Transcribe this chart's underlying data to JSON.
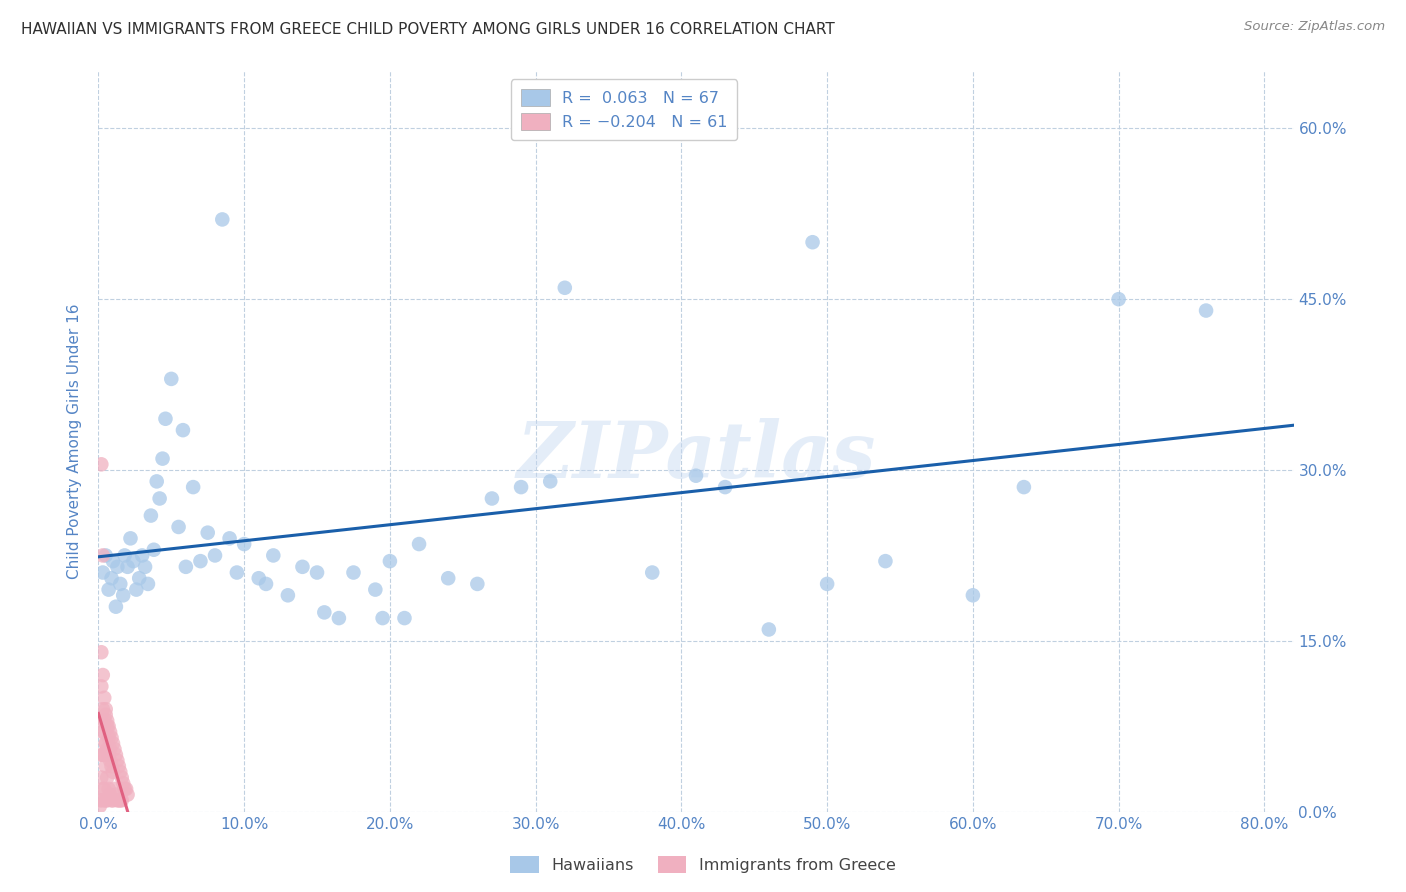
{
  "title": "HAWAIIAN VS IMMIGRANTS FROM GREECE CHILD POVERTY AMONG GIRLS UNDER 16 CORRELATION CHART",
  "source": "Source: ZipAtlas.com",
  "ylabel": "Child Poverty Among Girls Under 16",
  "watermark": "ZIPatlas",
  "hawaiian_color": "#a8c8e8",
  "hawaii_line_color": "#1a5faa",
  "greece_color": "#f0b0c0",
  "greece_line_color": "#e06080",
  "background_color": "#ffffff",
  "grid_color": "#c0d0e0",
  "xlim": [
    0.0,
    0.82
  ],
  "ylim": [
    0.0,
    0.65
  ],
  "title_color": "#303030",
  "source_color": "#888888",
  "axis_label_color": "#5585c5",
  "tick_label_color": "#5585c5",
  "ytick_label_color_right": "#5585c5",
  "legend_label_color": "#5585c5",
  "hawaiians_x": [
    0.003,
    0.005,
    0.007,
    0.009,
    0.01,
    0.012,
    0.013,
    0.015,
    0.017,
    0.018,
    0.02,
    0.022,
    0.024,
    0.026,
    0.028,
    0.03,
    0.032,
    0.034,
    0.036,
    0.038,
    0.04,
    0.042,
    0.044,
    0.046,
    0.05,
    0.055,
    0.058,
    0.06,
    0.065,
    0.07,
    0.075,
    0.08,
    0.09,
    0.095,
    0.1,
    0.11,
    0.115,
    0.12,
    0.13,
    0.14,
    0.15,
    0.165,
    0.175,
    0.19,
    0.2,
    0.21,
    0.22,
    0.24,
    0.26,
    0.29,
    0.31,
    0.38,
    0.41,
    0.46,
    0.5,
    0.54,
    0.6,
    0.635,
    0.7,
    0.76,
    0.32,
    0.43,
    0.49,
    0.27,
    0.195,
    0.085,
    0.155
  ],
  "hawaiians_y": [
    0.21,
    0.225,
    0.195,
    0.205,
    0.22,
    0.18,
    0.215,
    0.2,
    0.19,
    0.225,
    0.215,
    0.24,
    0.22,
    0.195,
    0.205,
    0.225,
    0.215,
    0.2,
    0.26,
    0.23,
    0.29,
    0.275,
    0.31,
    0.345,
    0.38,
    0.25,
    0.335,
    0.215,
    0.285,
    0.22,
    0.245,
    0.225,
    0.24,
    0.21,
    0.235,
    0.205,
    0.2,
    0.225,
    0.19,
    0.215,
    0.21,
    0.17,
    0.21,
    0.195,
    0.22,
    0.17,
    0.235,
    0.205,
    0.2,
    0.285,
    0.29,
    0.21,
    0.295,
    0.16,
    0.2,
    0.22,
    0.19,
    0.285,
    0.45,
    0.44,
    0.46,
    0.285,
    0.5,
    0.275,
    0.17,
    0.52,
    0.175
  ],
  "greece_x": [
    0.001,
    0.001,
    0.002,
    0.002,
    0.002,
    0.003,
    0.003,
    0.003,
    0.003,
    0.004,
    0.004,
    0.004,
    0.005,
    0.005,
    0.005,
    0.005,
    0.006,
    0.006,
    0.006,
    0.006,
    0.007,
    0.007,
    0.007,
    0.008,
    0.008,
    0.008,
    0.009,
    0.009,
    0.009,
    0.01,
    0.01,
    0.01,
    0.011,
    0.011,
    0.012,
    0.012,
    0.013,
    0.013,
    0.014,
    0.014,
    0.015,
    0.015,
    0.016,
    0.016,
    0.017,
    0.018,
    0.019,
    0.02,
    0.002,
    0.002,
    0.003,
    0.003,
    0.004,
    0.004,
    0.005,
    0.005,
    0.006,
    0.007,
    0.008,
    0.002,
    0.003
  ],
  "greece_y": [
    0.005,
    0.01,
    0.08,
    0.05,
    0.03,
    0.01,
    0.07,
    0.05,
    0.02,
    0.08,
    0.05,
    0.02,
    0.09,
    0.06,
    0.04,
    0.01,
    0.08,
    0.055,
    0.03,
    0.01,
    0.075,
    0.05,
    0.02,
    0.07,
    0.045,
    0.015,
    0.065,
    0.04,
    0.01,
    0.06,
    0.035,
    0.01,
    0.055,
    0.02,
    0.05,
    0.015,
    0.045,
    0.01,
    0.04,
    0.01,
    0.035,
    0.01,
    0.03,
    0.01,
    0.025,
    0.02,
    0.02,
    0.015,
    0.14,
    0.11,
    0.12,
    0.09,
    0.1,
    0.07,
    0.085,
    0.06,
    0.075,
    0.065,
    0.055,
    0.305,
    0.225
  ]
}
